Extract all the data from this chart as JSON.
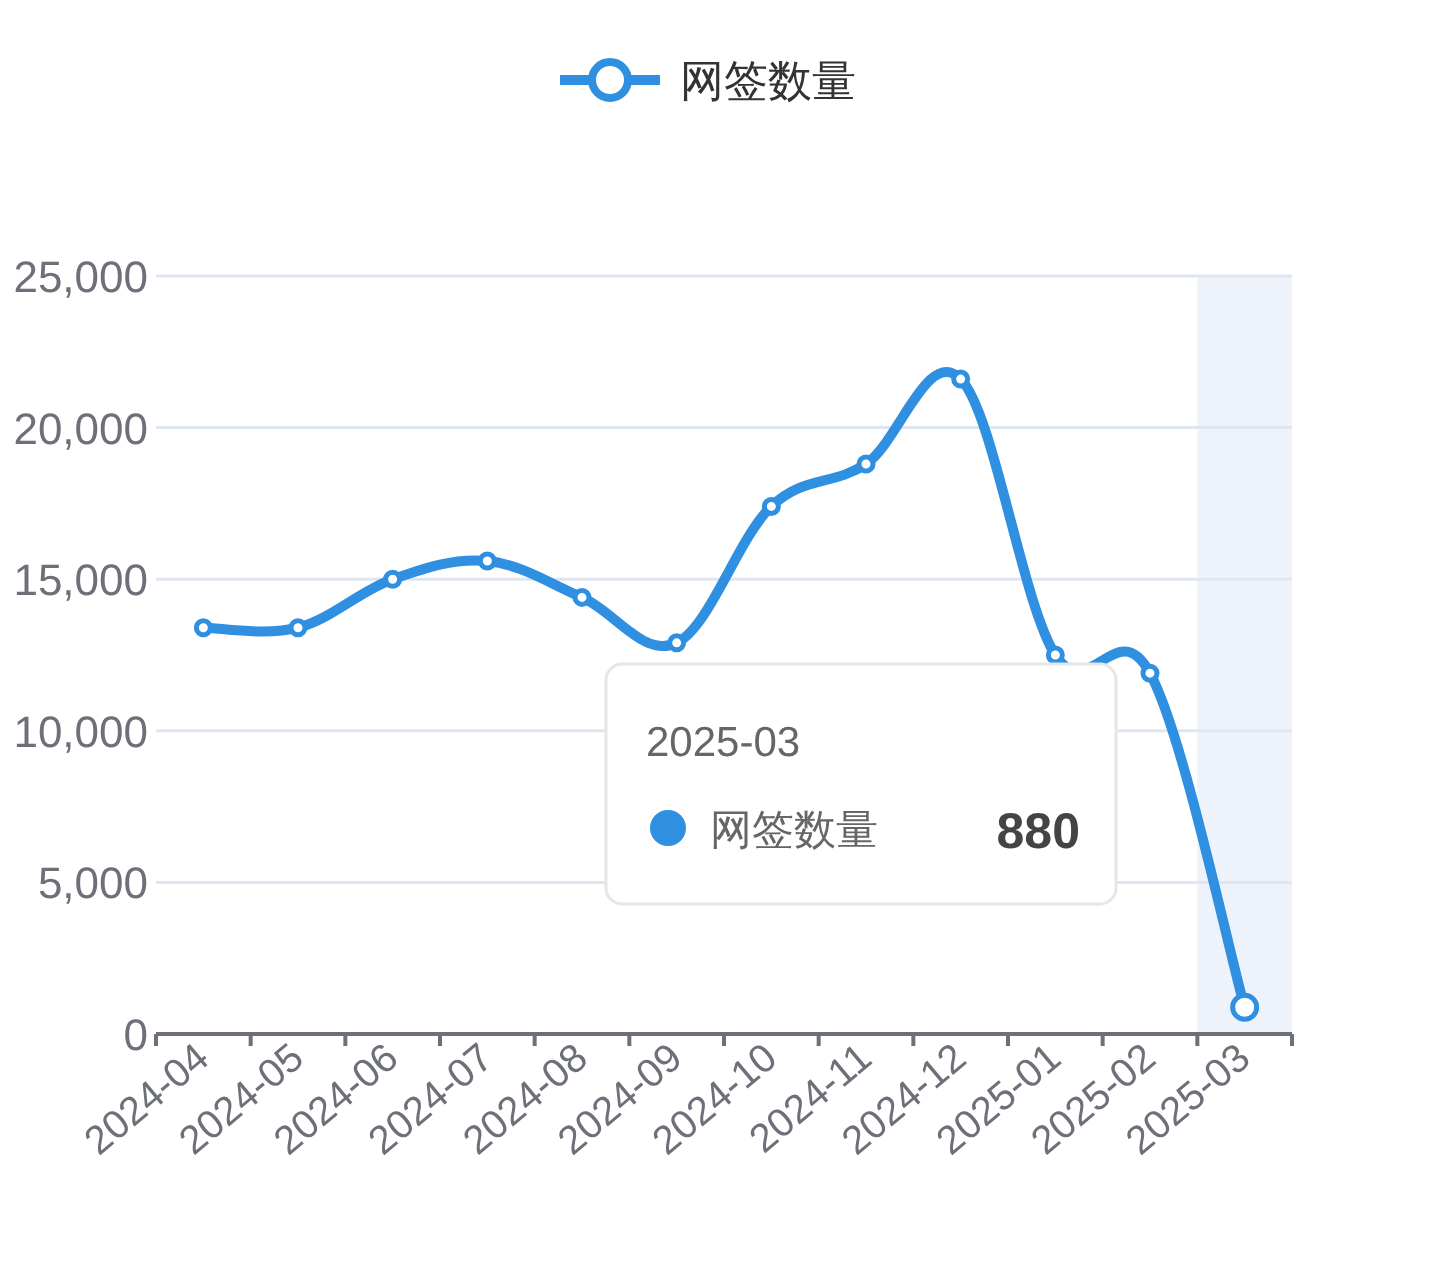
{
  "chart_data": {
    "type": "line",
    "categories": [
      "2024-04",
      "2024-05",
      "2024-06",
      "2024-07",
      "2024-08",
      "2024-09",
      "2024-10",
      "2024-11",
      "2024-12",
      "2025-01",
      "2025-02",
      "2025-03"
    ],
    "series": [
      {
        "name": "网签数量",
        "color": "#2f8fe0",
        "values": [
          13400,
          13400,
          15000,
          15600,
          14400,
          12900,
          17400,
          18800,
          21600,
          12500,
          11900,
          880
        ]
      }
    ],
    "ylim": [
      0,
      25000
    ],
    "yticks": [
      0,
      {
        "value": 5000,
        "label": "5,000"
      },
      {
        "value": 10000,
        "label": "10,000"
      },
      {
        "value": 15000,
        "label": "15,000"
      },
      {
        "value": 20000,
        "label": "20,000"
      },
      {
        "value": 25000,
        "label": "25,000"
      }
    ],
    "grid": "y",
    "legend": "top",
    "marker": "circle",
    "bands": [
      {
        "axis": "x",
        "from": "2025-03",
        "to": "2025-03",
        "color": "#eef3fb"
      }
    ],
    "annotations": [
      "2025-03",
      "网签数量",
      "880"
    ]
  }
}
